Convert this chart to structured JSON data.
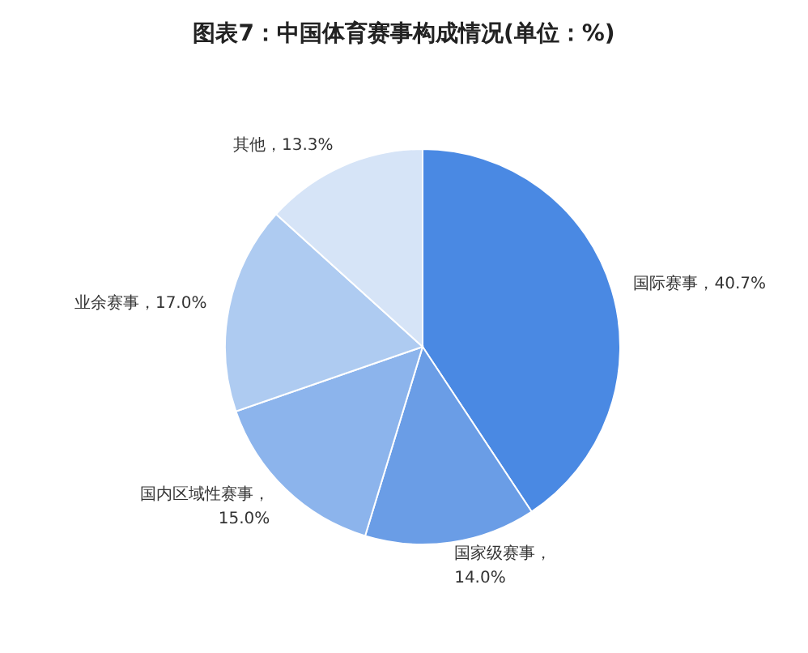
{
  "chart_data": {
    "type": "pie",
    "title": "图表7：中国体育赛事构成情况(单位：%)",
    "categories": [
      "国际赛事",
      "国家级赛事",
      "国内区域性赛事",
      "业余赛事",
      "其他"
    ],
    "values": [
      40.7,
      14.0,
      15.0,
      17.0,
      13.3
    ],
    "colors": [
      "#4a89e3",
      "#6a9de6",
      "#8cb4ec",
      "#aecbf1",
      "#d6e4f7"
    ],
    "value_labels": [
      "，40.7%",
      "，\n14.0%",
      "，\n15.0%",
      "，17.0%",
      "，13.3%"
    ],
    "legend": false
  }
}
